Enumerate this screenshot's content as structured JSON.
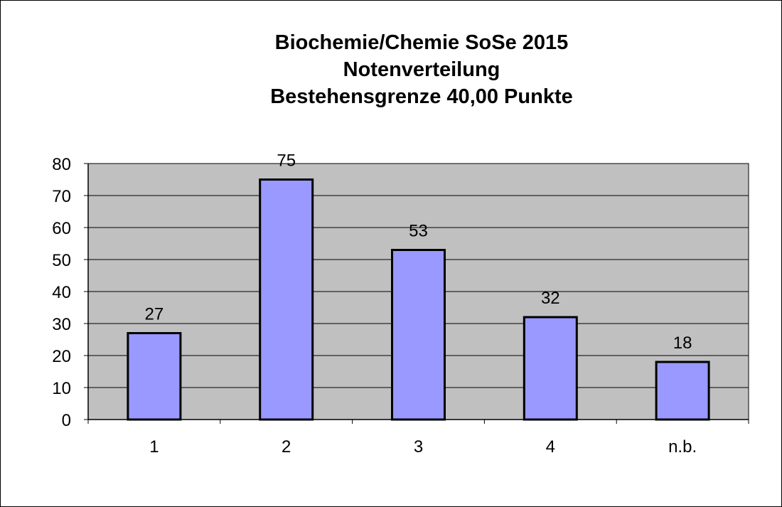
{
  "chart_data": {
    "type": "bar",
    "title_lines": [
      "Biochemie/Chemie SoSe 2015",
      "Notenverteilung",
      "Bestehensgrenze 40,00 Punkte"
    ],
    "xlabel": "",
    "ylabel": "",
    "categories": [
      "1",
      "2",
      "3",
      "4",
      "n.b."
    ],
    "values": [
      27,
      75,
      53,
      32,
      18
    ],
    "data_labels": [
      "27",
      "75",
      "53",
      "32",
      "18"
    ],
    "ylim": [
      0,
      80
    ],
    "yticks": [
      0,
      10,
      20,
      30,
      40,
      50,
      60,
      70,
      80
    ],
    "ytick_labels": [
      "0",
      "10",
      "20",
      "30",
      "40",
      "50",
      "60",
      "70",
      "80"
    ],
    "grid": true,
    "legend": "none",
    "colors": {
      "bar_fill": "#9999ff",
      "bar_stroke": "#000000",
      "plot_background": "#c0c0c0",
      "gridline": "#000000",
      "axis": "#000000"
    }
  }
}
